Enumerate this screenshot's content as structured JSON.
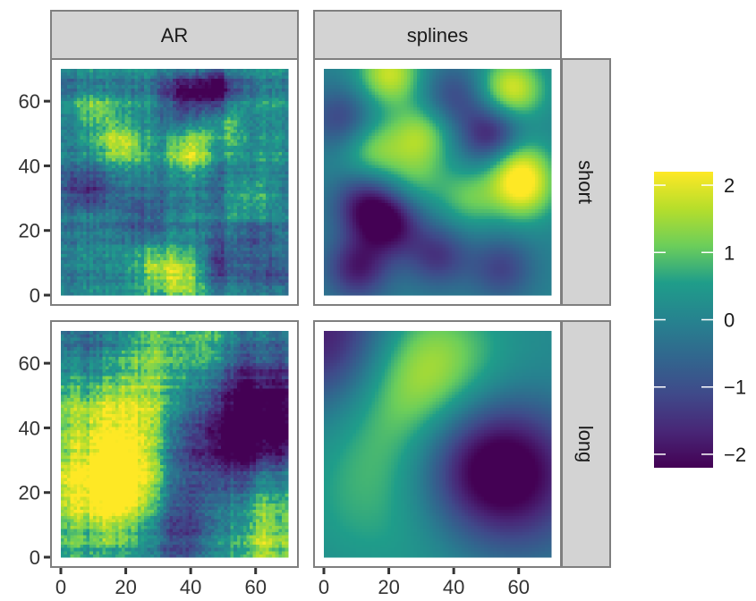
{
  "chart_data": {
    "type": "heatmap",
    "facet_columns": [
      "AR",
      "splines"
    ],
    "facet_rows": [
      "short",
      "long"
    ],
    "x_ticks": [
      0,
      20,
      40,
      60
    ],
    "y_ticks": [
      0,
      20,
      40,
      60
    ],
    "xlim": [
      0,
      70
    ],
    "ylim": [
      0,
      70
    ],
    "grid_size": [
      71,
      71
    ],
    "colorscale": "viridis",
    "colorbar": {
      "ticks": [
        2,
        1,
        0,
        -1,
        -2
      ],
      "tick_labels": [
        "2",
        "1",
        "0",
        "−1",
        "−2"
      ],
      "range": [
        -2.2,
        2.2
      ],
      "colors": [
        "#440154",
        "#482777",
        "#3F4A8A",
        "#31678E",
        "#26838F",
        "#1F9D8A",
        "#6CCE5A",
        "#B6DE2B",
        "#FEE825"
      ]
    },
    "panels": [
      {
        "facet_col": "AR",
        "facet_row": "short",
        "hotspots": [
          {
            "x": 18,
            "y": 47,
            "v": 1.6
          },
          {
            "x": 40,
            "y": 44,
            "v": 1.5
          },
          {
            "x": 50,
            "y": 53,
            "v": 1.2
          },
          {
            "x": 10,
            "y": 57,
            "v": 1.0
          },
          {
            "x": 38,
            "y": 62,
            "v": -2.0
          },
          {
            "x": 48,
            "y": 63,
            "v": -1.8
          },
          {
            "x": 8,
            "y": 33,
            "v": -1.2
          },
          {
            "x": 25,
            "y": 24,
            "v": -1.0
          },
          {
            "x": 50,
            "y": 10,
            "v": -1.1
          },
          {
            "x": 30,
            "y": 8,
            "v": 1.2
          },
          {
            "x": 38,
            "y": 5,
            "v": 1.4
          },
          {
            "x": 65,
            "y": 6,
            "v": -1.2
          },
          {
            "x": 58,
            "y": 30,
            "v": 1.0
          },
          {
            "x": 62,
            "y": 18,
            "v": -0.9
          }
        ]
      },
      {
        "facet_col": "splines",
        "facet_row": "short",
        "hotspots": [
          {
            "x": 58,
            "y": 64,
            "v": 2.0
          },
          {
            "x": 20,
            "y": 69,
            "v": 1.8
          },
          {
            "x": 15,
            "y": 45,
            "v": 1.2
          },
          {
            "x": 30,
            "y": 50,
            "v": 1.4
          },
          {
            "x": 60,
            "y": 40,
            "v": 1.6
          },
          {
            "x": 62,
            "y": 32,
            "v": 1.5
          },
          {
            "x": 45,
            "y": 30,
            "v": 1.0
          },
          {
            "x": 12,
            "y": 28,
            "v": -1.6
          },
          {
            "x": 20,
            "y": 22,
            "v": -2.0
          },
          {
            "x": 52,
            "y": 50,
            "v": -1.9
          },
          {
            "x": 5,
            "y": 55,
            "v": -1.2
          },
          {
            "x": 35,
            "y": 12,
            "v": -1.4
          },
          {
            "x": 10,
            "y": 8,
            "v": -1.8
          },
          {
            "x": 55,
            "y": 8,
            "v": -1.2
          },
          {
            "x": 40,
            "y": 62,
            "v": -1.1
          },
          {
            "x": 28,
            "y": 36,
            "v": 0.8
          }
        ]
      },
      {
        "facet_col": "AR",
        "facet_row": "long",
        "hotspots": [
          {
            "x": 14,
            "y": 18,
            "v": 1.9
          },
          {
            "x": 8,
            "y": 45,
            "v": 1.4
          },
          {
            "x": 42,
            "y": 66,
            "v": 1.6
          },
          {
            "x": 62,
            "y": 6,
            "v": 1.5
          },
          {
            "x": 30,
            "y": 45,
            "v": 0.9
          },
          {
            "x": 20,
            "y": 30,
            "v": 1.2
          },
          {
            "x": 65,
            "y": 45,
            "v": -1.8
          },
          {
            "x": 45,
            "y": 30,
            "v": -1.2
          },
          {
            "x": 38,
            "y": 8,
            "v": -1.4
          },
          {
            "x": 55,
            "y": 40,
            "v": -0.9
          },
          {
            "x": 50,
            "y": 60,
            "v": -1.0
          },
          {
            "x": 5,
            "y": 65,
            "v": -0.7
          }
        ]
      },
      {
        "facet_col": "splines",
        "facet_row": "long",
        "hotspots": [
          {
            "x": 30,
            "y": 58,
            "v": 1.9
          },
          {
            "x": 2,
            "y": 68,
            "v": -2.0
          },
          {
            "x": 58,
            "y": 25,
            "v": -2.0
          },
          {
            "x": 45,
            "y": 30,
            "v": -1.3
          },
          {
            "x": 20,
            "y": 30,
            "v": 0.8
          },
          {
            "x": 65,
            "y": 55,
            "v": 0.2
          },
          {
            "x": 35,
            "y": 5,
            "v": 0.4
          },
          {
            "x": 5,
            "y": 10,
            "v": 0.3
          }
        ]
      }
    ]
  }
}
